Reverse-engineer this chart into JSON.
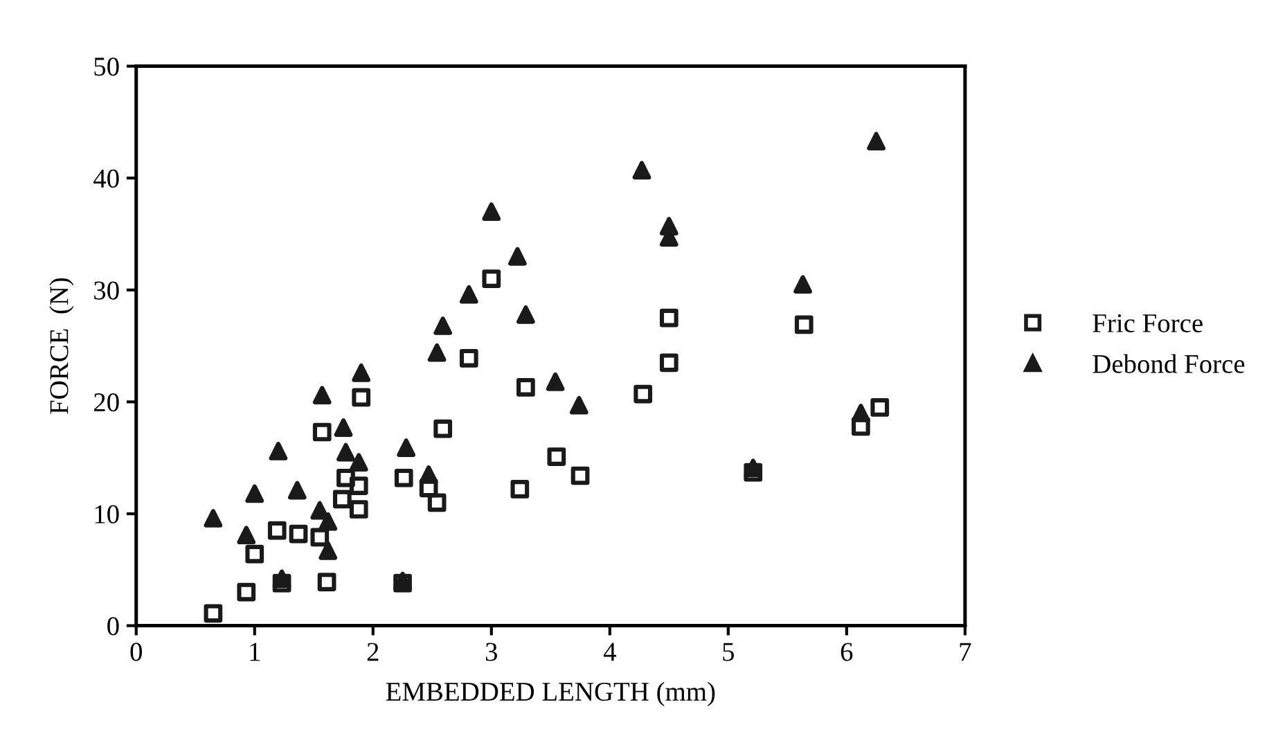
{
  "chart_data": {
    "type": "scatter",
    "xlabel": "EMBEDDED LENGTH (mm)",
    "ylabel": "FORCE  (N)",
    "xlim": [
      0,
      7
    ],
    "xticks": [
      0,
      1,
      2,
      3,
      4,
      5,
      6,
      7
    ],
    "ylim": [
      0,
      50
    ],
    "yticks": [
      0,
      10,
      20,
      30,
      40,
      50
    ],
    "grid": false,
    "legend": "right",
    "series": [
      {
        "name": "Fric Force",
        "color": "#1a1a1a",
        "marker": "square",
        "x": [
          0.65,
          0.93,
          1.0,
          1.19,
          1.37,
          1.23,
          1.55,
          1.61,
          1.57,
          1.77,
          1.74,
          1.88,
          1.88,
          1.9,
          2.26,
          2.25,
          2.54,
          2.59,
          2.81,
          3.0,
          3.24,
          3.29,
          2.47,
          3.55,
          3.75,
          4.28,
          4.5,
          4.5,
          5.21,
          5.64,
          6.12,
          6.28
        ],
        "values": [
          1.1,
          3.0,
          6.4,
          8.5,
          8.2,
          3.8,
          7.9,
          3.9,
          17.3,
          13.2,
          11.3,
          12.5,
          10.4,
          20.4,
          13.2,
          3.8,
          11.0,
          17.6,
          23.9,
          31.0,
          12.2,
          21.3,
          12.3,
          15.1,
          13.4,
          20.7,
          27.5,
          23.5,
          13.7,
          26.9,
          17.8,
          19.5
        ]
      },
      {
        "name": "Debond Force",
        "color": "#1a1a1a",
        "marker": "triangle",
        "x": [
          0.65,
          0.93,
          1.0,
          1.2,
          1.36,
          1.23,
          1.55,
          1.57,
          1.62,
          1.62,
          1.75,
          1.77,
          1.88,
          1.9,
          2.25,
          2.28,
          2.47,
          2.54,
          2.59,
          2.81,
          3.0,
          3.22,
          3.29,
          3.54,
          3.74,
          4.27,
          4.5,
          4.5,
          5.21,
          5.63,
          6.12,
          6.25
        ],
        "values": [
          9.6,
          8.1,
          11.8,
          15.6,
          12.1,
          4.2,
          10.3,
          20.6,
          9.3,
          6.7,
          17.7,
          15.5,
          14.6,
          22.6,
          4.0,
          15.9,
          13.5,
          24.4,
          26.8,
          29.6,
          37.0,
          33.0,
          27.8,
          21.8,
          19.7,
          40.7,
          35.7,
          34.7,
          14.1,
          30.5,
          19.0,
          43.3
        ]
      }
    ]
  }
}
